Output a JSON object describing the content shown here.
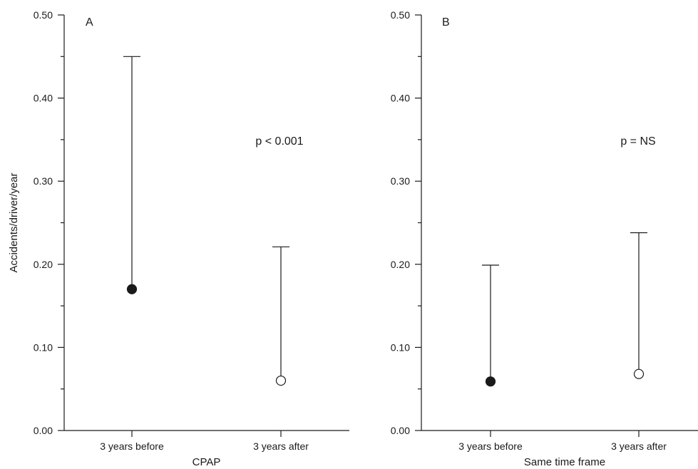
{
  "chart_data": [
    {
      "type": "scatter",
      "panel_label": "A",
      "xlabel": "CPAP",
      "ylabel": "Accidents/driver/year",
      "ylim": [
        0,
        0.5
      ],
      "yticks": [
        "0.00",
        "0.10",
        "0.20",
        "0.30",
        "0.40",
        "0.50"
      ],
      "categories": [
        "3 years before",
        "3 years after"
      ],
      "points": [
        {
          "category": "3 years before",
          "value": 0.17,
          "upper": 0.45,
          "marker": "filled"
        },
        {
          "category": "3 years after",
          "value": 0.06,
          "upper": 0.221,
          "marker": "open"
        }
      ],
      "annotation": "p < 0.001"
    },
    {
      "type": "scatter",
      "panel_label": "B",
      "xlabel": "Same time frame",
      "ylabel": "",
      "ylim": [
        0,
        0.5
      ],
      "yticks": [
        "0.00",
        "0.10",
        "0.20",
        "0.30",
        "0.40",
        "0.50"
      ],
      "categories": [
        "3 years before",
        "3 years after"
      ],
      "points": [
        {
          "category": "3 years before",
          "value": 0.059,
          "upper": 0.199,
          "marker": "filled"
        },
        {
          "category": "3 years after",
          "value": 0.068,
          "upper": 0.238,
          "marker": "open"
        }
      ],
      "annotation": "p = NS"
    }
  ]
}
